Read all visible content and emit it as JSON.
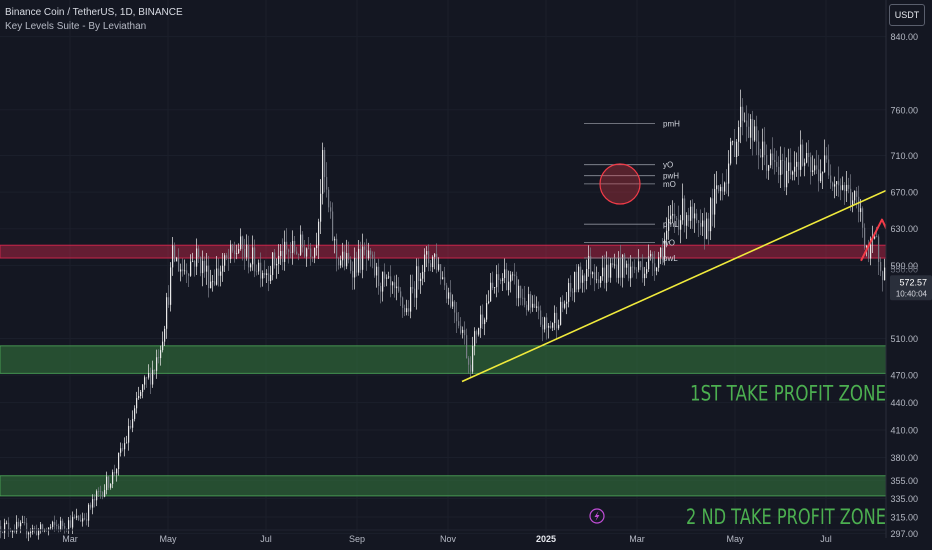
{
  "header": {
    "symbol_title": "Binance Coin / TetherUS, 1D, BINANCE",
    "indicator_name": "Key Levels Suite - By Leviathan",
    "currency_button": "USDT"
  },
  "colors": {
    "background": "#141722",
    "candle_up": "#e8e8e8",
    "candle_down": "#7a7e88",
    "trendline": "#f0ea3c",
    "resistance_zone": "#c8264a",
    "profit_zone": "#2f6b3a",
    "profit_text": "#4caf50",
    "arrow": "#f23b48"
  },
  "chart_data": {
    "type": "candlestick",
    "title": "Binance Coin / TetherUS, 1D, BINANCE",
    "x_ticks": [
      "Mar",
      "May",
      "Jul",
      "Sep",
      "Nov",
      "2025",
      "Mar",
      "May",
      "Jul"
    ],
    "y_ticks": [
      840,
      760,
      710,
      670,
      630,
      590,
      510,
      470,
      440,
      410,
      380,
      355,
      335,
      315,
      297
    ],
    "ylim": [
      292,
      880
    ],
    "last_price": "572.57",
    "countdown": "10:40:04",
    "axis_hidden_label": "550.00",
    "close_path": [
      {
        "x": 0,
        "y": 305
      },
      {
        "x": 3,
        "y": 300
      },
      {
        "x": 6,
        "y": 315
      },
      {
        "x": 7,
        "y": 340
      },
      {
        "x": 8,
        "y": 360
      },
      {
        "x": 9,
        "y": 400
      },
      {
        "x": 10,
        "y": 450
      },
      {
        "x": 11,
        "y": 480
      },
      {
        "x": 11.5,
        "y": 510
      },
      {
        "x": 12,
        "y": 560
      },
      {
        "x": 12.3,
        "y": 600
      },
      {
        "x": 13,
        "y": 585
      },
      {
        "x": 14,
        "y": 600
      },
      {
        "x": 15,
        "y": 575
      },
      {
        "x": 16,
        "y": 590
      },
      {
        "x": 17,
        "y": 610
      },
      {
        "x": 18,
        "y": 595
      },
      {
        "x": 19,
        "y": 585
      },
      {
        "x": 20,
        "y": 600
      },
      {
        "x": 21.5,
        "y": 610
      },
      {
        "x": 22.5,
        "y": 612
      },
      {
        "x": 23,
        "y": 700
      },
      {
        "x": 23.5,
        "y": 640
      },
      {
        "x": 24,
        "y": 600
      },
      {
        "x": 25,
        "y": 590
      },
      {
        "x": 26,
        "y": 600
      },
      {
        "x": 27,
        "y": 575
      },
      {
        "x": 28,
        "y": 560
      },
      {
        "x": 29,
        "y": 540
      },
      {
        "x": 30,
        "y": 590
      },
      {
        "x": 31,
        "y": 600
      },
      {
        "x": 32,
        "y": 560
      },
      {
        "x": 33,
        "y": 520
      },
      {
        "x": 33.5,
        "y": 480
      },
      {
        "x": 34,
        "y": 520
      },
      {
        "x": 35,
        "y": 560
      },
      {
        "x": 36,
        "y": 580
      },
      {
        "x": 37,
        "y": 560
      },
      {
        "x": 38,
        "y": 540
      },
      {
        "x": 39,
        "y": 520
      },
      {
        "x": 40,
        "y": 540
      },
      {
        "x": 41,
        "y": 570
      },
      {
        "x": 42,
        "y": 590
      },
      {
        "x": 43,
        "y": 580
      },
      {
        "x": 44,
        "y": 590
      },
      {
        "x": 45,
        "y": 585
      },
      {
        "x": 46,
        "y": 590
      },
      {
        "x": 47,
        "y": 600
      },
      {
        "x": 48,
        "y": 640
      },
      {
        "x": 49,
        "y": 650
      },
      {
        "x": 50,
        "y": 620
      },
      {
        "x": 51,
        "y": 660
      },
      {
        "x": 52,
        "y": 700
      },
      {
        "x": 53,
        "y": 760
      },
      {
        "x": 54,
        "y": 720
      },
      {
        "x": 55,
        "y": 700
      },
      {
        "x": 56,
        "y": 690
      },
      {
        "x": 57,
        "y": 710
      },
      {
        "x": 58,
        "y": 690
      },
      {
        "x": 59,
        "y": 700
      },
      {
        "x": 60,
        "y": 680
      },
      {
        "x": 61,
        "y": 660
      },
      {
        "x": 61.5,
        "y": 640
      },
      {
        "x": 62,
        "y": 600
      },
      {
        "x": 62.5,
        "y": 615
      },
      {
        "x": 63.3,
        "y": 572.57
      }
    ],
    "horizontal_levels": [
      {
        "label": "pmH",
        "value": 745
      },
      {
        "label": "yO",
        "value": 700
      },
      {
        "label": "pwH",
        "value": 688
      },
      {
        "label": "mO",
        "value": 679
      },
      {
        "label": "pmL",
        "value": 635
      },
      {
        "label": "wO",
        "value": 615
      },
      {
        "label": "pwL",
        "value": 598
      }
    ],
    "zones": [
      {
        "name": "resistance",
        "low": 598,
        "high": 612
      },
      {
        "name": "tp1",
        "low": 472,
        "high": 502,
        "label": "1ST TAKE PROFIT ZONE"
      },
      {
        "name": "tp2",
        "low": 338,
        "high": 360,
        "label": "2 ND TAKE PROFIT ZONE"
      }
    ],
    "trendline": [
      {
        "x": 33,
        "y": 463
      },
      {
        "x": 70,
        "y": 718
      }
    ],
    "projection": [
      {
        "x": 61.5,
        "y": 595
      },
      {
        "x": 63,
        "y": 640
      },
      {
        "x": 64.3,
        "y": 598
      },
      {
        "x": 64.8,
        "y": 608
      },
      {
        "x": 65.7,
        "y": 580
      },
      {
        "x": 67,
        "y": 515
      },
      {
        "x": 68.4,
        "y": 545
      },
      {
        "x": 69.6,
        "y": 460
      }
    ]
  }
}
